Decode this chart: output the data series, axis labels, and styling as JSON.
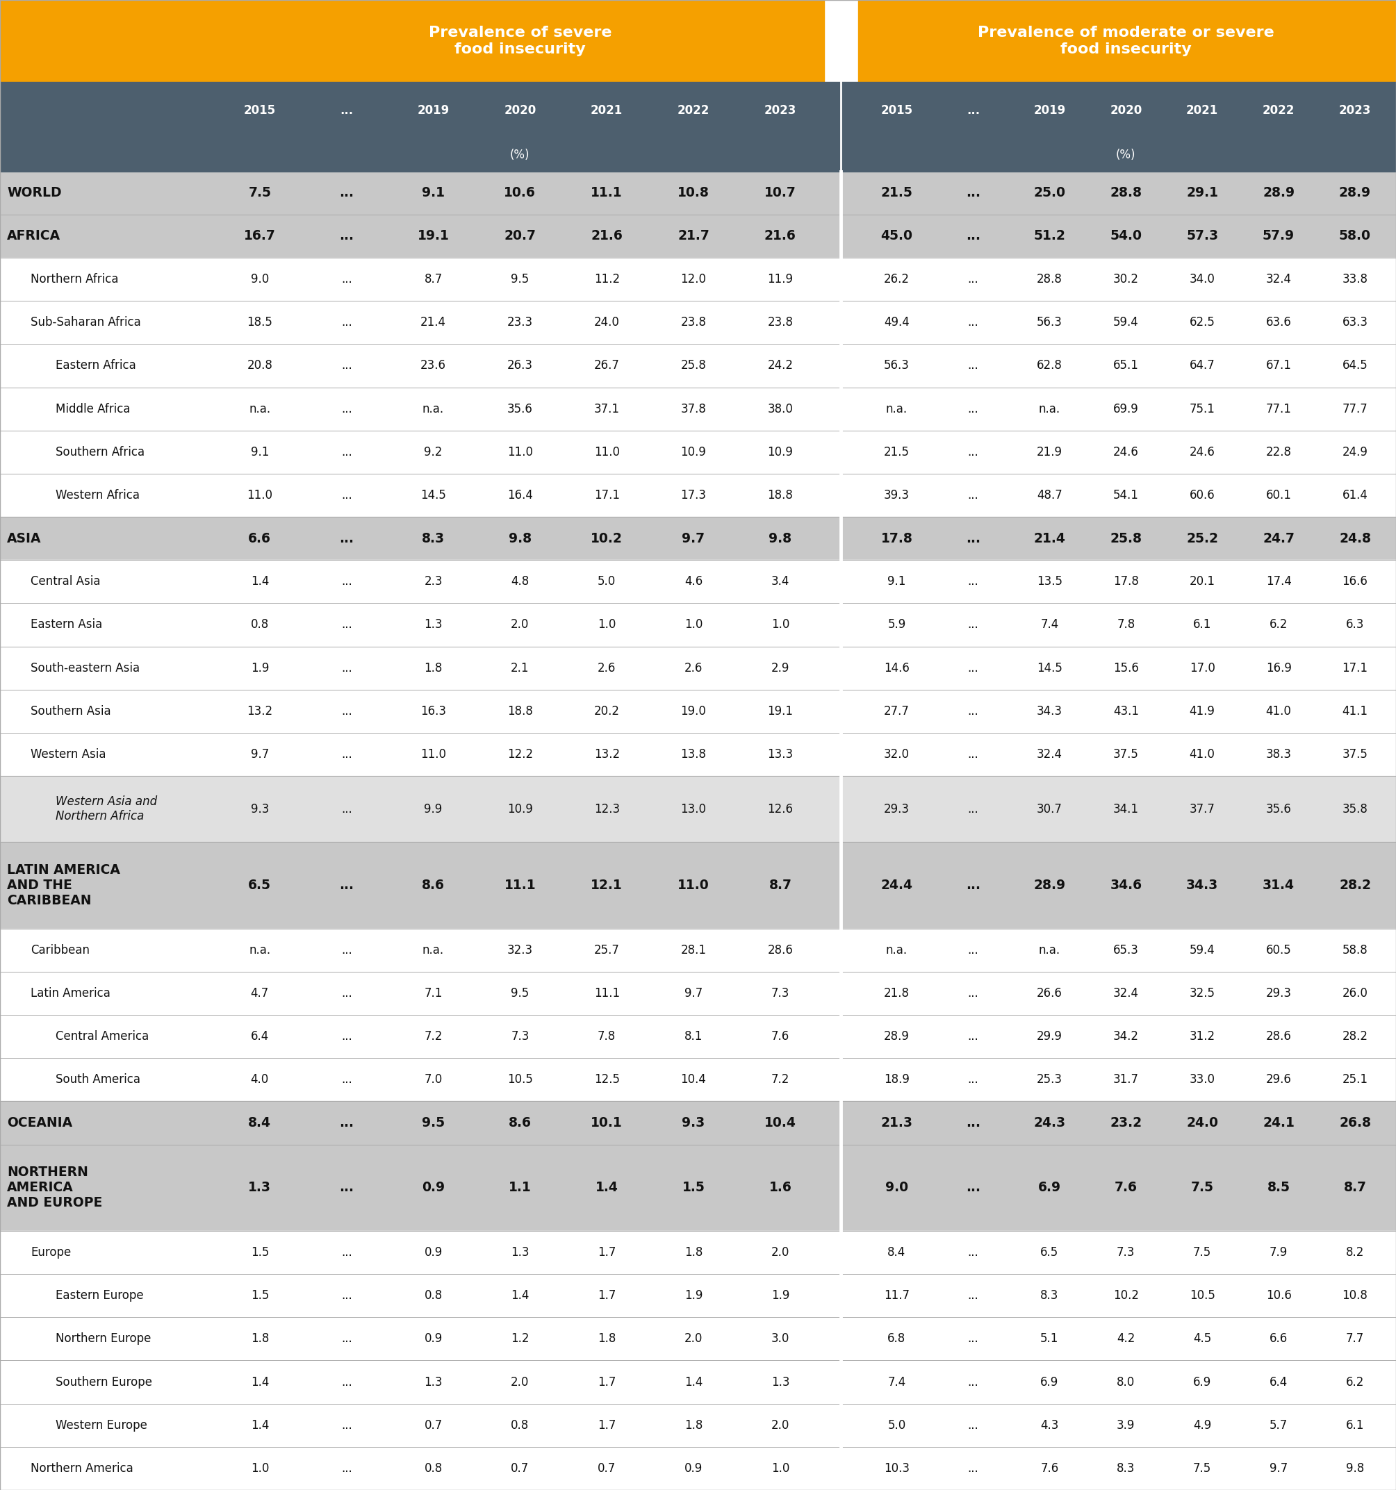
{
  "header1": "Prevalence of severe\nfood insecurity",
  "header2": "Prevalence of moderate or severe\nfood insecurity",
  "orange_color": "#F5A000",
  "slate_color": "#4D5F6E",
  "row_dark": "#C8C8C8",
  "row_medium": "#E0E0E0",
  "row_white": "#FFFFFF",
  "text_black": "#111111",
  "text_white": "#FFFFFF",
  "divider_dark": "#999999",
  "divider_light": "#BBBBBB",
  "rows": [
    {
      "label": "WORLD",
      "indent": 0,
      "bold": true,
      "italic": false,
      "style": "dark",
      "vals": [
        "7.5",
        "...",
        "9.1",
        "10.6",
        "11.1",
        "10.8",
        "10.7",
        "21.5",
        "...",
        "25.0",
        "28.8",
        "29.1",
        "28.9",
        "28.9"
      ]
    },
    {
      "label": "AFRICA",
      "indent": 0,
      "bold": true,
      "italic": false,
      "style": "dark",
      "vals": [
        "16.7",
        "...",
        "19.1",
        "20.7",
        "21.6",
        "21.7",
        "21.6",
        "45.0",
        "...",
        "51.2",
        "54.0",
        "57.3",
        "57.9",
        "58.0"
      ]
    },
    {
      "label": "Northern Africa",
      "indent": 1,
      "bold": false,
      "italic": false,
      "style": "white",
      "vals": [
        "9.0",
        "...",
        "8.7",
        "9.5",
        "11.2",
        "12.0",
        "11.9",
        "26.2",
        "...",
        "28.8",
        "30.2",
        "34.0",
        "32.4",
        "33.8"
      ]
    },
    {
      "label": "Sub-Saharan Africa",
      "indent": 1,
      "bold": false,
      "italic": false,
      "style": "white",
      "vals": [
        "18.5",
        "...",
        "21.4",
        "23.3",
        "24.0",
        "23.8",
        "23.8",
        "49.4",
        "...",
        "56.3",
        "59.4",
        "62.5",
        "63.6",
        "63.3"
      ]
    },
    {
      "label": "Eastern Africa",
      "indent": 2,
      "bold": false,
      "italic": false,
      "style": "white",
      "vals": [
        "20.8",
        "...",
        "23.6",
        "26.3",
        "26.7",
        "25.8",
        "24.2",
        "56.3",
        "...",
        "62.8",
        "65.1",
        "64.7",
        "67.1",
        "64.5"
      ]
    },
    {
      "label": "Middle Africa",
      "indent": 2,
      "bold": false,
      "italic": false,
      "style": "white",
      "vals": [
        "n.a.",
        "...",
        "n.a.",
        "35.6",
        "37.1",
        "37.8",
        "38.0",
        "n.a.",
        "...",
        "n.a.",
        "69.9",
        "75.1",
        "77.1",
        "77.7"
      ]
    },
    {
      "label": "Southern Africa",
      "indent": 2,
      "bold": false,
      "italic": false,
      "style": "white",
      "vals": [
        "9.1",
        "...",
        "9.2",
        "11.0",
        "11.0",
        "10.9",
        "10.9",
        "21.5",
        "...",
        "21.9",
        "24.6",
        "24.6",
        "22.8",
        "24.9"
      ]
    },
    {
      "label": "Western Africa",
      "indent": 2,
      "bold": false,
      "italic": false,
      "style": "white",
      "vals": [
        "11.0",
        "...",
        "14.5",
        "16.4",
        "17.1",
        "17.3",
        "18.8",
        "39.3",
        "...",
        "48.7",
        "54.1",
        "60.6",
        "60.1",
        "61.4"
      ]
    },
    {
      "label": "ASIA",
      "indent": 0,
      "bold": true,
      "italic": false,
      "style": "dark",
      "vals": [
        "6.6",
        "...",
        "8.3",
        "9.8",
        "10.2",
        "9.7",
        "9.8",
        "17.8",
        "...",
        "21.4",
        "25.8",
        "25.2",
        "24.7",
        "24.8"
      ]
    },
    {
      "label": "Central Asia",
      "indent": 1,
      "bold": false,
      "italic": false,
      "style": "white",
      "vals": [
        "1.4",
        "...",
        "2.3",
        "4.8",
        "5.0",
        "4.6",
        "3.4",
        "9.1",
        "...",
        "13.5",
        "17.8",
        "20.1",
        "17.4",
        "16.6"
      ]
    },
    {
      "label": "Eastern Asia",
      "indent": 1,
      "bold": false,
      "italic": false,
      "style": "white",
      "vals": [
        "0.8",
        "...",
        "1.3",
        "2.0",
        "1.0",
        "1.0",
        "1.0",
        "5.9",
        "...",
        "7.4",
        "7.8",
        "6.1",
        "6.2",
        "6.3"
      ]
    },
    {
      "label": "South-eastern Asia",
      "indent": 1,
      "bold": false,
      "italic": false,
      "style": "white",
      "vals": [
        "1.9",
        "...",
        "1.8",
        "2.1",
        "2.6",
        "2.6",
        "2.9",
        "14.6",
        "...",
        "14.5",
        "15.6",
        "17.0",
        "16.9",
        "17.1"
      ]
    },
    {
      "label": "Southern Asia",
      "indent": 1,
      "bold": false,
      "italic": false,
      "style": "white",
      "vals": [
        "13.2",
        "...",
        "16.3",
        "18.8",
        "20.2",
        "19.0",
        "19.1",
        "27.7",
        "...",
        "34.3",
        "43.1",
        "41.9",
        "41.0",
        "41.1"
      ]
    },
    {
      "label": "Western Asia",
      "indent": 1,
      "bold": false,
      "italic": false,
      "style": "white",
      "vals": [
        "9.7",
        "...",
        "11.0",
        "12.2",
        "13.2",
        "13.8",
        "13.3",
        "32.0",
        "...",
        "32.4",
        "37.5",
        "41.0",
        "38.3",
        "37.5"
      ]
    },
    {
      "label": "Western Asia and\nNorthern Africa",
      "indent": 2,
      "bold": false,
      "italic": true,
      "style": "medium",
      "vals": [
        "9.3",
        "...",
        "9.9",
        "10.9",
        "12.3",
        "13.0",
        "12.6",
        "29.3",
        "...",
        "30.7",
        "34.1",
        "37.7",
        "35.6",
        "35.8"
      ]
    },
    {
      "label": "LATIN AMERICA\nAND THE\nCARIBBEAN",
      "indent": 0,
      "bold": true,
      "italic": false,
      "style": "dark",
      "vals": [
        "6.5",
        "...",
        "8.6",
        "11.1",
        "12.1",
        "11.0",
        "8.7",
        "24.4",
        "...",
        "28.9",
        "34.6",
        "34.3",
        "31.4",
        "28.2"
      ]
    },
    {
      "label": "Caribbean",
      "indent": 1,
      "bold": false,
      "italic": false,
      "style": "white",
      "vals": [
        "n.a.",
        "...",
        "n.a.",
        "32.3",
        "25.7",
        "28.1",
        "28.6",
        "n.a.",
        "...",
        "n.a.",
        "65.3",
        "59.4",
        "60.5",
        "58.8"
      ]
    },
    {
      "label": "Latin America",
      "indent": 1,
      "bold": false,
      "italic": false,
      "style": "white",
      "vals": [
        "4.7",
        "...",
        "7.1",
        "9.5",
        "11.1",
        "9.7",
        "7.3",
        "21.8",
        "...",
        "26.6",
        "32.4",
        "32.5",
        "29.3",
        "26.0"
      ]
    },
    {
      "label": "Central America",
      "indent": 2,
      "bold": false,
      "italic": false,
      "style": "white",
      "vals": [
        "6.4",
        "...",
        "7.2",
        "7.3",
        "7.8",
        "8.1",
        "7.6",
        "28.9",
        "...",
        "29.9",
        "34.2",
        "31.2",
        "28.6",
        "28.2"
      ]
    },
    {
      "label": "South America",
      "indent": 2,
      "bold": false,
      "italic": false,
      "style": "white",
      "vals": [
        "4.0",
        "...",
        "7.0",
        "10.5",
        "12.5",
        "10.4",
        "7.2",
        "18.9",
        "...",
        "25.3",
        "31.7",
        "33.0",
        "29.6",
        "25.1"
      ]
    },
    {
      "label": "OCEANIA",
      "indent": 0,
      "bold": true,
      "italic": false,
      "style": "dark",
      "vals": [
        "8.4",
        "...",
        "9.5",
        "8.6",
        "10.1",
        "9.3",
        "10.4",
        "21.3",
        "...",
        "24.3",
        "23.2",
        "24.0",
        "24.1",
        "26.8"
      ]
    },
    {
      "label": "NORTHERN\nAMERICA\nAND EUROPE",
      "indent": 0,
      "bold": true,
      "italic": false,
      "style": "dark",
      "vals": [
        "1.3",
        "...",
        "0.9",
        "1.1",
        "1.4",
        "1.5",
        "1.6",
        "9.0",
        "...",
        "6.9",
        "7.6",
        "7.5",
        "8.5",
        "8.7"
      ]
    },
    {
      "label": "Europe",
      "indent": 1,
      "bold": false,
      "italic": false,
      "style": "white",
      "vals": [
        "1.5",
        "...",
        "0.9",
        "1.3",
        "1.7",
        "1.8",
        "2.0",
        "8.4",
        "...",
        "6.5",
        "7.3",
        "7.5",
        "7.9",
        "8.2"
      ]
    },
    {
      "label": "Eastern Europe",
      "indent": 2,
      "bold": false,
      "italic": false,
      "style": "white",
      "vals": [
        "1.5",
        "...",
        "0.8",
        "1.4",
        "1.7",
        "1.9",
        "1.9",
        "11.7",
        "...",
        "8.3",
        "10.2",
        "10.5",
        "10.6",
        "10.8"
      ]
    },
    {
      "label": "Northern Europe",
      "indent": 2,
      "bold": false,
      "italic": false,
      "style": "white",
      "vals": [
        "1.8",
        "...",
        "0.9",
        "1.2",
        "1.8",
        "2.0",
        "3.0",
        "6.8",
        "...",
        "5.1",
        "4.2",
        "4.5",
        "6.6",
        "7.7"
      ]
    },
    {
      "label": "Southern Europe",
      "indent": 2,
      "bold": false,
      "italic": false,
      "style": "white",
      "vals": [
        "1.4",
        "...",
        "1.3",
        "2.0",
        "1.7",
        "1.4",
        "1.3",
        "7.4",
        "...",
        "6.9",
        "8.0",
        "6.9",
        "6.4",
        "6.2"
      ]
    },
    {
      "label": "Western Europe",
      "indent": 2,
      "bold": false,
      "italic": false,
      "style": "white",
      "vals": [
        "1.4",
        "...",
        "0.7",
        "0.8",
        "1.7",
        "1.8",
        "2.0",
        "5.0",
        "...",
        "4.3",
        "3.9",
        "4.9",
        "5.7",
        "6.1"
      ]
    },
    {
      "label": "Northern America",
      "indent": 1,
      "bold": false,
      "italic": false,
      "style": "white",
      "vals": [
        "1.0",
        "...",
        "0.8",
        "0.7",
        "0.7",
        "0.9",
        "1.0",
        "10.3",
        "...",
        "7.6",
        "8.3",
        "7.5",
        "9.7",
        "9.8"
      ]
    }
  ],
  "fig_width": 20.09,
  "fig_height": 21.45
}
